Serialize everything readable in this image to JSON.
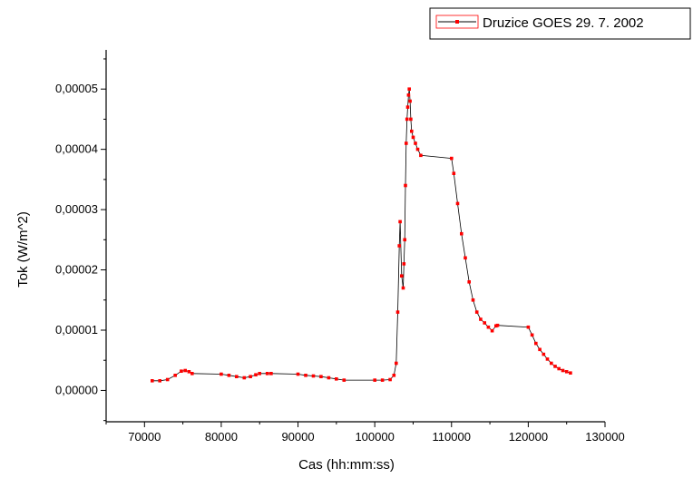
{
  "chart_data": {
    "type": "line",
    "xlabel": "Cas (hh:mm:ss)",
    "ylabel": "Tok (W/m^2)",
    "xlim": [
      65000,
      130000
    ],
    "ylim": [
      -5.2e-06,
      5.65e-05
    ],
    "x_ticks": [
      70000,
      80000,
      90000,
      100000,
      110000,
      120000,
      130000
    ],
    "x_tick_labels": [
      "70000",
      "80000",
      "90000",
      "100000",
      "110000",
      "120000",
      "130000"
    ],
    "y_ticks": [
      0,
      1e-05,
      2e-05,
      3e-05,
      4e-05,
      5e-05
    ],
    "y_tick_labels": [
      "0,00000",
      "0,00001",
      "0,00002",
      "0,00003",
      "0,00004",
      "0,00005"
    ],
    "grid": false,
    "legend_position": "top-right",
    "colors": {
      "marker": "#ff0000",
      "line": "#000000",
      "legend_border": "#000000"
    },
    "series": [
      {
        "name": "Druzice GOES 29. 7. 2002",
        "points": [
          [
            71000,
            1.6e-06
          ],
          [
            72000,
            1.6e-06
          ],
          [
            73000,
            1.8e-06
          ],
          [
            74000,
            2.5e-06
          ],
          [
            74800,
            3.2e-06
          ],
          [
            75300,
            3.3e-06
          ],
          [
            75800,
            3.1e-06
          ],
          [
            76200,
            2.8e-06
          ],
          [
            80000,
            2.7e-06
          ],
          [
            81000,
            2.5e-06
          ],
          [
            82000,
            2.3e-06
          ],
          [
            83000,
            2.1e-06
          ],
          [
            83800,
            2.3e-06
          ],
          [
            84500,
            2.6e-06
          ],
          [
            85000,
            2.8e-06
          ],
          [
            86000,
            2.8e-06
          ],
          [
            86500,
            2.8e-06
          ],
          [
            90000,
            2.7e-06
          ],
          [
            91000,
            2.5e-06
          ],
          [
            92000,
            2.4e-06
          ],
          [
            93000,
            2.3e-06
          ],
          [
            94000,
            2.1e-06
          ],
          [
            95000,
            1.9e-06
          ],
          [
            96000,
            1.7e-06
          ],
          [
            100000,
            1.7e-06
          ],
          [
            101000,
            1.7e-06
          ],
          [
            102000,
            1.8e-06
          ],
          [
            102500,
            2.5e-06
          ],
          [
            102800,
            4.5e-06
          ],
          [
            103000,
            1.3e-05
          ],
          [
            103200,
            2.4e-05
          ],
          [
            103300,
            2.8e-05
          ],
          [
            103500,
            1.9e-05
          ],
          [
            103700,
            1.7e-05
          ],
          [
            103800,
            2.1e-05
          ],
          [
            103900,
            2.5e-05
          ],
          [
            104000,
            3.4e-05
          ],
          [
            104100,
            4.1e-05
          ],
          [
            104200,
            4.5e-05
          ],
          [
            104300,
            4.7e-05
          ],
          [
            104400,
            4.9e-05
          ],
          [
            104500,
            5e-05
          ],
          [
            104600,
            4.8e-05
          ],
          [
            104700,
            4.5e-05
          ],
          [
            104800,
            4.3e-05
          ],
          [
            105000,
            4.2e-05
          ],
          [
            105300,
            4.1e-05
          ],
          [
            105600,
            4e-05
          ],
          [
            106000,
            3.9e-05
          ],
          [
            110000,
            3.85e-05
          ],
          [
            110300,
            3.6e-05
          ],
          [
            110800,
            3.1e-05
          ],
          [
            111300,
            2.6e-05
          ],
          [
            111800,
            2.2e-05
          ],
          [
            112300,
            1.8e-05
          ],
          [
            112800,
            1.5e-05
          ],
          [
            113300,
            1.3e-05
          ],
          [
            113800,
            1.18e-05
          ],
          [
            114300,
            1.12e-05
          ],
          [
            114800,
            1.05e-05
          ],
          [
            115300,
            9.9e-06
          ],
          [
            115800,
            1.07e-05
          ],
          [
            116000,
            1.08e-05
          ],
          [
            120000,
            1.05e-05
          ],
          [
            120500,
            9.2e-06
          ],
          [
            121000,
            7.8e-06
          ],
          [
            121500,
            6.8e-06
          ],
          [
            122000,
            6e-06
          ],
          [
            122500,
            5.2e-06
          ],
          [
            123000,
            4.5e-06
          ],
          [
            123500,
            4e-06
          ],
          [
            124000,
            3.6e-06
          ],
          [
            124500,
            3.3e-06
          ],
          [
            125000,
            3.1e-06
          ],
          [
            125500,
            2.9e-06
          ]
        ]
      }
    ]
  }
}
